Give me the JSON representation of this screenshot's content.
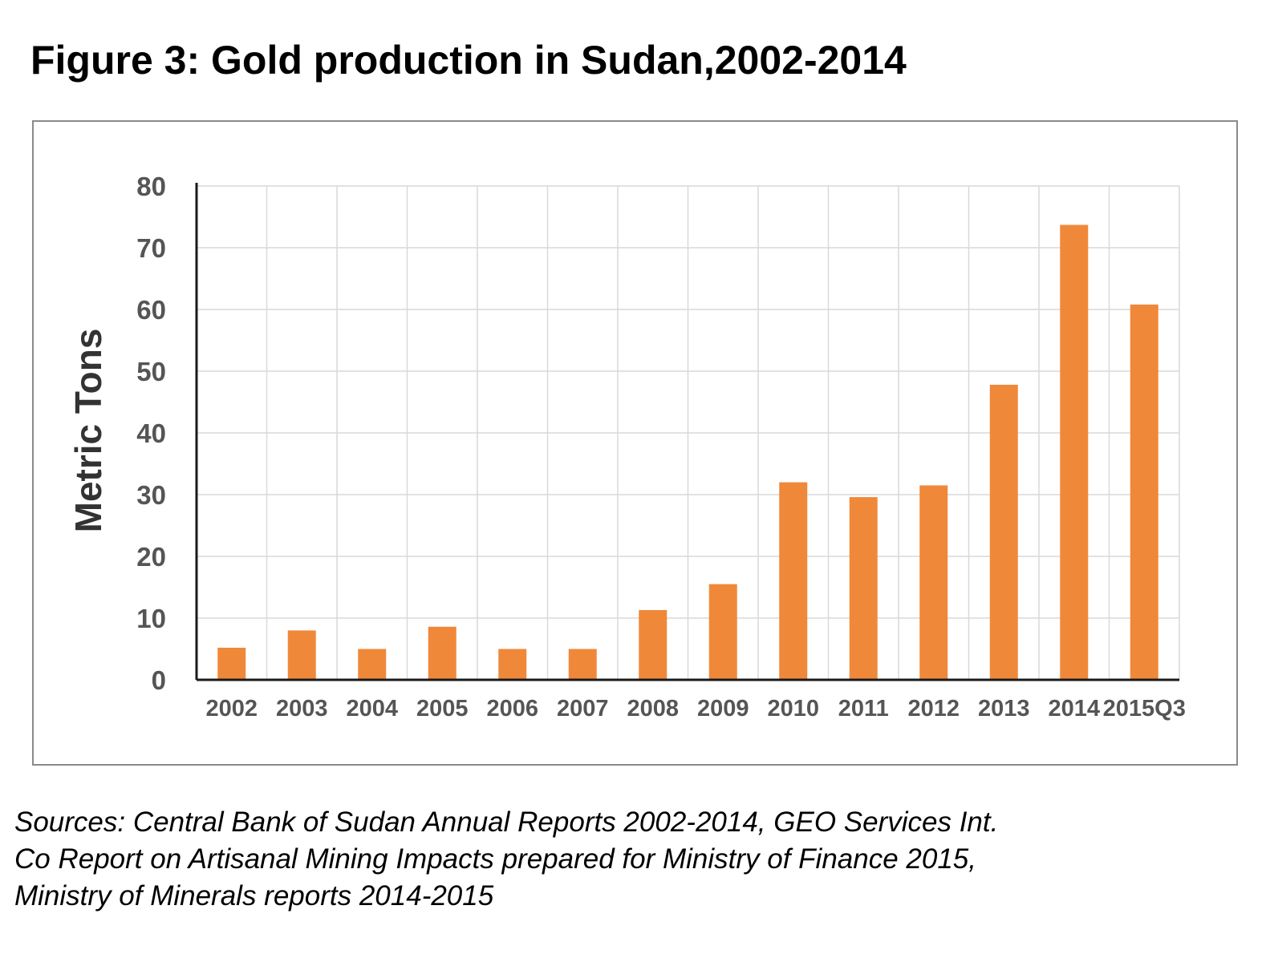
{
  "figure": {
    "title": "Figure 3: Gold production in Sudan,2002-2014"
  },
  "colors": {
    "bar": "#F0883A",
    "grid": "#D9D9D9",
    "axis": "#1a1a1a",
    "tick_text": "#555555",
    "ylabel_text": "#333333"
  },
  "chart_data": {
    "type": "bar",
    "title": "Figure 3: Gold production in Sudan,2002-2014",
    "xlabel": "",
    "ylabel": "Metric Tons",
    "categories": [
      "2002",
      "2003",
      "2004",
      "2005",
      "2006",
      "2007",
      "2008",
      "2009",
      "2010",
      "2011",
      "2012",
      "2013",
      "2014",
      "2015Q3"
    ],
    "values": [
      5.2,
      8.0,
      5.0,
      8.6,
      5.0,
      5.0,
      11.3,
      15.5,
      32.0,
      29.6,
      31.5,
      47.8,
      73.7,
      60.8
    ],
    "ylim": [
      0,
      80
    ],
    "yticks": [
      "0",
      "10",
      "20",
      "30",
      "40",
      "50",
      "60",
      "70",
      "80"
    ],
    "grid": true,
    "legend": "none"
  },
  "sources": {
    "line1": "Sources: Central Bank of Sudan Annual Reports 2002-2014, GEO Services Int.",
    "line2": "Co Report on Artisanal Mining Impacts prepared for Ministry of Finance 2015,",
    "line3": "Ministry of Minerals reports 2014-2015"
  }
}
